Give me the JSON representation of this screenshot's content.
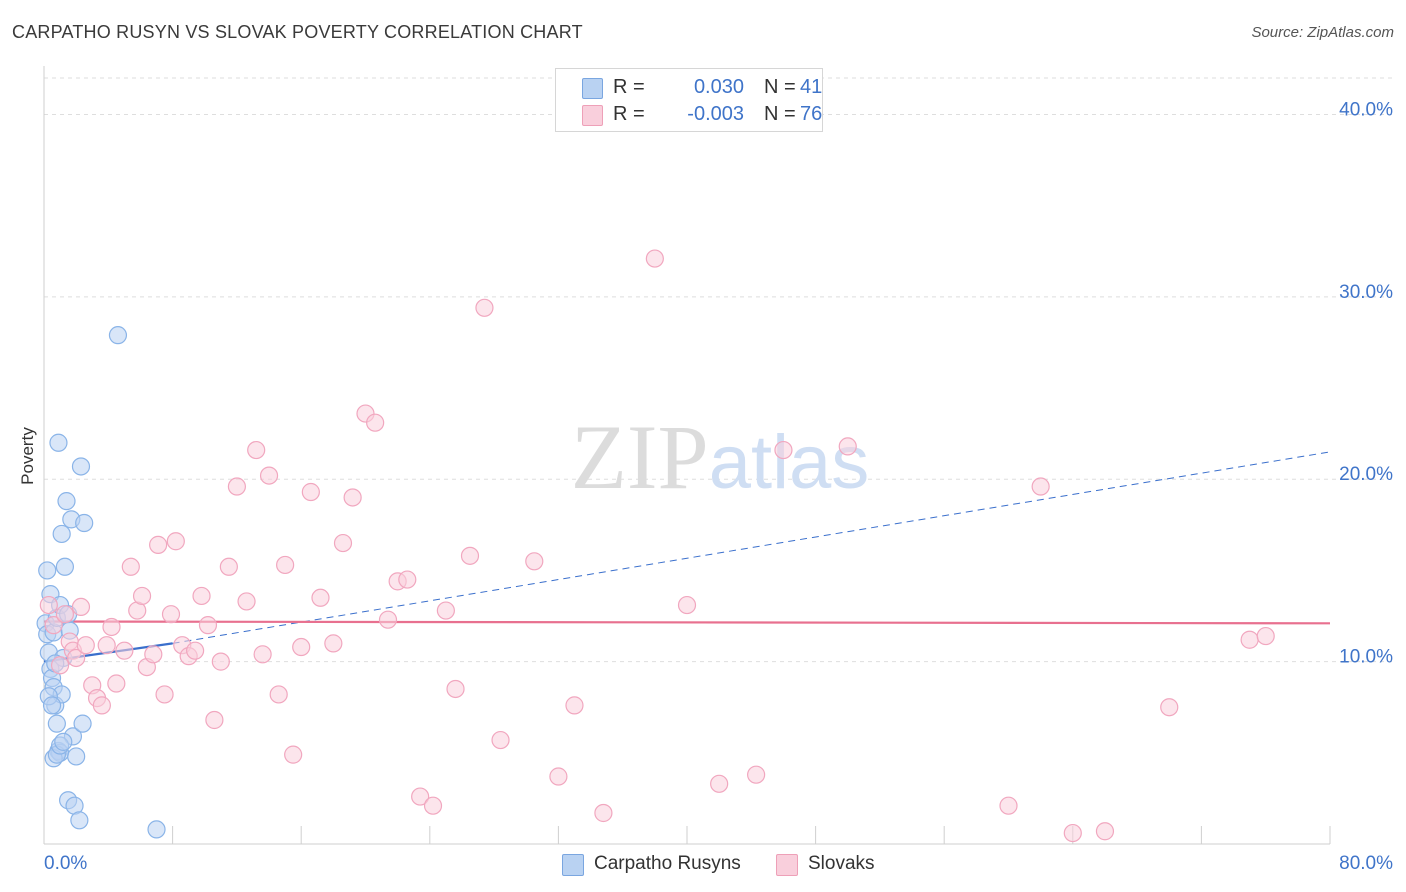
{
  "chart_data": {
    "type": "scatter",
    "title": "CARPATHO RUSYN VS SLOVAK POVERTY CORRELATION CHART",
    "source": "Source: ZipAtlas.com",
    "xlabel": "",
    "ylabel": "Poverty",
    "xlim": [
      0,
      80
    ],
    "ylim": [
      0,
      42
    ],
    "x_tick_labels": [
      "0.0%",
      "80.0%"
    ],
    "y_ticks": [
      10,
      20,
      30,
      40
    ],
    "y_tick_labels": [
      "10.0%",
      "20.0%",
      "30.0%",
      "40.0%"
    ],
    "grid": true,
    "legend_position": "bottom-center",
    "watermark": "ZIPatlas",
    "stats": [
      {
        "r_label": "R =",
        "r_value": "0.030",
        "n_label": "N =",
        "n_value": "41"
      },
      {
        "r_label": "R =",
        "r_value": "-0.003",
        "n_label": "N =",
        "n_value": "76"
      }
    ],
    "series": [
      {
        "name": "Carpatho Rusyns",
        "color": "#8ab4e8",
        "fill": "#b9d2f2",
        "line_color": "#3a6fcc",
        "trend": {
          "x0": 0,
          "y0": 10.0,
          "x1": 8,
          "y1": 11.0,
          "dash_x1": 80,
          "dash_y1": 21.5
        },
        "x": [
          0.1,
          0.2,
          0.3,
          0.4,
          0.5,
          0.6,
          0.7,
          0.8,
          0.9,
          1.0,
          1.1,
          1.2,
          0.2,
          0.4,
          0.6,
          0.8,
          1.0,
          1.3,
          1.5,
          1.7,
          0.3,
          0.5,
          0.7,
          0.9,
          1.1,
          1.4,
          1.6,
          1.8,
          2.0,
          2.3,
          2.5,
          0.6,
          0.8,
          1.0,
          1.2,
          1.5,
          1.9,
          2.2,
          2.4,
          4.6,
          7.0
        ],
        "y": [
          12.1,
          11.5,
          10.5,
          9.6,
          9.1,
          8.6,
          7.6,
          6.6,
          5.1,
          5.0,
          8.2,
          10.2,
          15.0,
          13.7,
          11.6,
          12.4,
          13.1,
          15.2,
          12.6,
          17.8,
          8.1,
          7.6,
          9.9,
          22.0,
          17.0,
          18.8,
          11.7,
          5.9,
          4.8,
          20.7,
          17.6,
          4.7,
          4.9,
          5.4,
          5.6,
          2.4,
          2.1,
          1.3,
          6.6,
          27.9,
          0.8
        ]
      },
      {
        "name": "Slovaks",
        "color": "#f1a7bf",
        "fill": "#f9cfdc",
        "line_color": "#e8708f",
        "trend": {
          "x0": 0,
          "y0": 12.2,
          "x1": 80,
          "y1": 12.1
        },
        "x": [
          0.3,
          0.6,
          1.0,
          1.3,
          1.6,
          1.8,
          2.0,
          2.3,
          2.6,
          3.0,
          3.3,
          3.6,
          3.9,
          4.2,
          4.5,
          5.0,
          5.4,
          5.8,
          6.1,
          6.4,
          6.8,
          7.1,
          7.5,
          7.9,
          8.2,
          8.6,
          9.0,
          9.4,
          9.8,
          10.2,
          10.6,
          11.0,
          11.5,
          12.0,
          12.6,
          13.2,
          13.6,
          14.0,
          14.6,
          15.0,
          15.5,
          16.0,
          16.6,
          17.2,
          18.0,
          18.6,
          19.2,
          20.0,
          20.6,
          21.4,
          22.0,
          22.6,
          23.4,
          24.2,
          25.0,
          25.6,
          26.5,
          27.4,
          28.4,
          30.5,
          32.0,
          33.0,
          34.8,
          38.0,
          40.0,
          42.0,
          44.3,
          46.0,
          50.0,
          60.0,
          62.0,
          64.0,
          66.0,
          70.0,
          75.0,
          76.0
        ],
        "y": [
          13.1,
          12.0,
          9.8,
          12.6,
          11.1,
          10.6,
          10.2,
          13.0,
          10.9,
          8.7,
          8.0,
          7.6,
          10.9,
          11.9,
          8.8,
          10.6,
          15.2,
          12.8,
          13.6,
          9.7,
          10.4,
          16.4,
          8.2,
          12.6,
          16.6,
          10.9,
          10.3,
          10.6,
          13.6,
          12.0,
          6.8,
          10.0,
          15.2,
          19.6,
          13.3,
          21.6,
          10.4,
          20.2,
          8.2,
          15.3,
          4.9,
          10.8,
          19.3,
          13.5,
          11.0,
          16.5,
          19.0,
          23.6,
          23.1,
          12.3,
          14.4,
          14.5,
          2.6,
          2.1,
          12.8,
          8.5,
          15.8,
          29.4,
          5.7,
          15.5,
          3.7,
          7.6,
          1.7,
          32.1,
          13.1,
          3.3,
          3.8,
          21.6,
          21.8,
          2.1,
          19.6,
          0.6,
          0.7,
          7.5,
          11.2,
          11.4
        ]
      }
    ]
  }
}
